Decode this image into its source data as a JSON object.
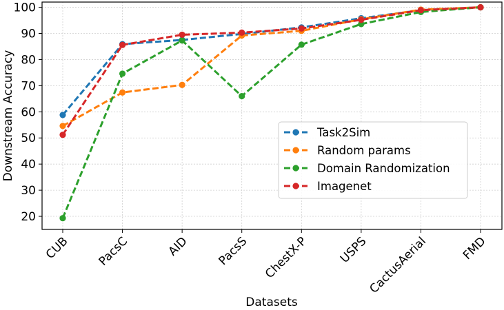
{
  "chart_data": {
    "type": "line",
    "title": "",
    "xlabel": "Datasets",
    "ylabel": "Downstream Accuracy",
    "categories": [
      "CUB",
      "PacsC",
      "AID",
      "PacsS",
      "ChestX-P",
      "USPS",
      "CactusAerial",
      "FMD"
    ],
    "ylim": [
      15,
      102
    ],
    "yticks": [
      20,
      30,
      40,
      50,
      60,
      70,
      80,
      90,
      100
    ],
    "grid": true,
    "legend_position": "center-right",
    "series": [
      {
        "name": "Task2Sim",
        "color": "#1f77b4",
        "values": [
          58.8,
          85.9,
          87.5,
          89.8,
          92.3,
          95.8,
          98.9,
          100.0
        ]
      },
      {
        "name": "Random params",
        "color": "#ff7f0e",
        "values": [
          54.6,
          67.4,
          70.3,
          89.2,
          91.0,
          95.4,
          99.1,
          100.0
        ]
      },
      {
        "name": "Domain Randomization",
        "color": "#2ca02c",
        "values": [
          19.3,
          74.6,
          87.3,
          66.0,
          85.7,
          93.6,
          98.2,
          100.0
        ]
      },
      {
        "name": "Imagenet",
        "color": "#d62728",
        "values": [
          51.2,
          85.6,
          89.5,
          90.3,
          91.9,
          95.2,
          98.9,
          100.0
        ]
      }
    ]
  }
}
